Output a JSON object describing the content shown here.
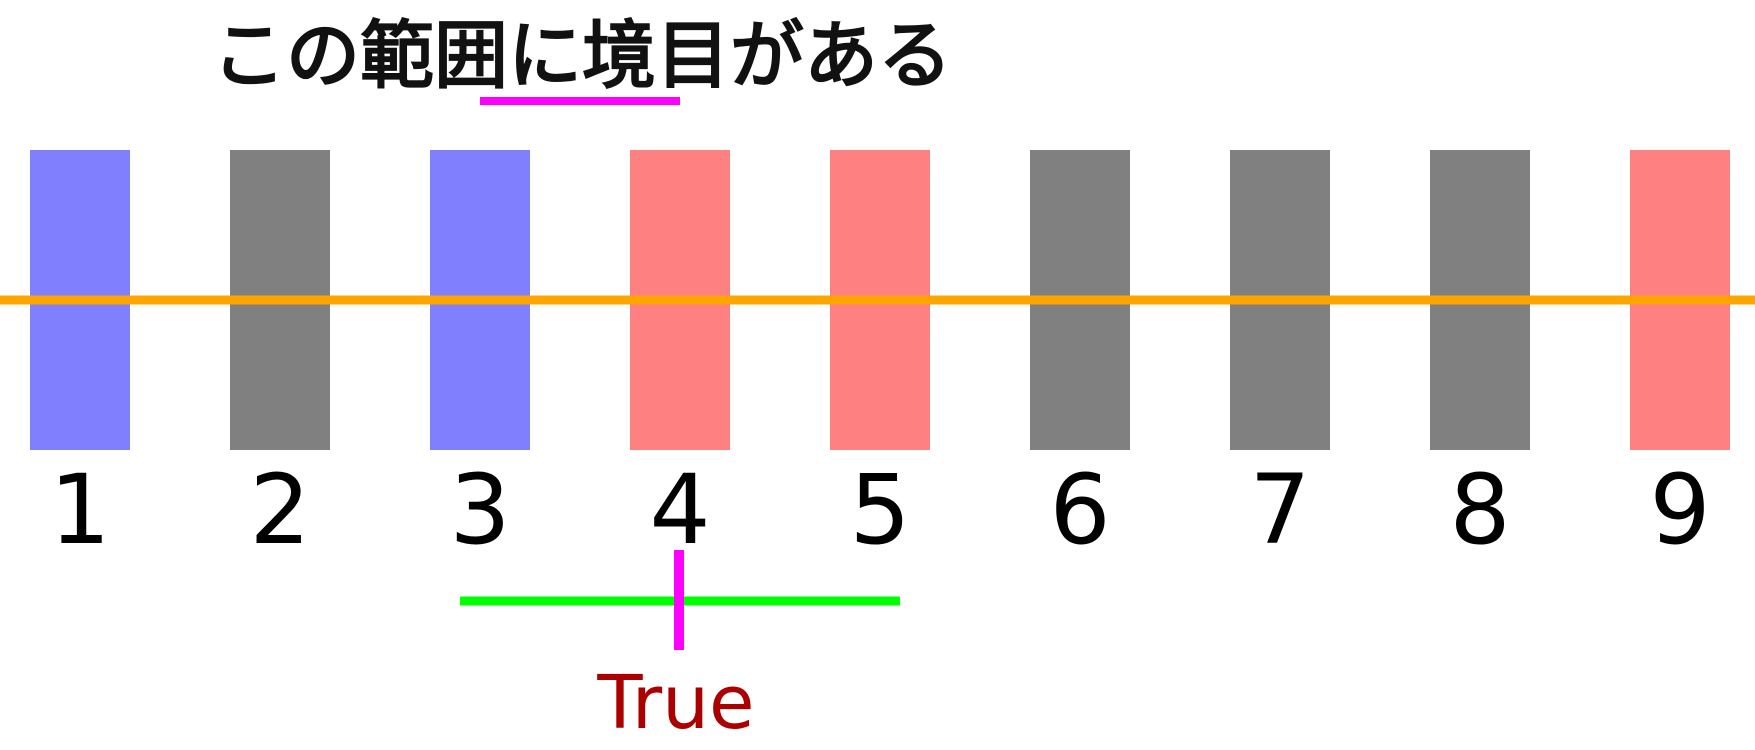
{
  "heading": "この範囲に境目がある",
  "bars": [
    {
      "label": "1",
      "color": "#8080ff"
    },
    {
      "label": "2",
      "color": "#808080"
    },
    {
      "label": "3",
      "color": "#8080ff"
    },
    {
      "label": "4",
      "color": "#ff8080"
    },
    {
      "label": "5",
      "color": "#ff8080"
    },
    {
      "label": "6",
      "color": "#808080"
    },
    {
      "label": "7",
      "color": "#808080"
    },
    {
      "label": "8",
      "color": "#808080"
    },
    {
      "label": "9",
      "color": "#ff8080"
    }
  ],
  "result": {
    "text": "True",
    "color": "#aa0000"
  },
  "colors": {
    "threshold_line": "#ffa500",
    "range_line": "#00ff00",
    "marker": "#ff00ff"
  }
}
